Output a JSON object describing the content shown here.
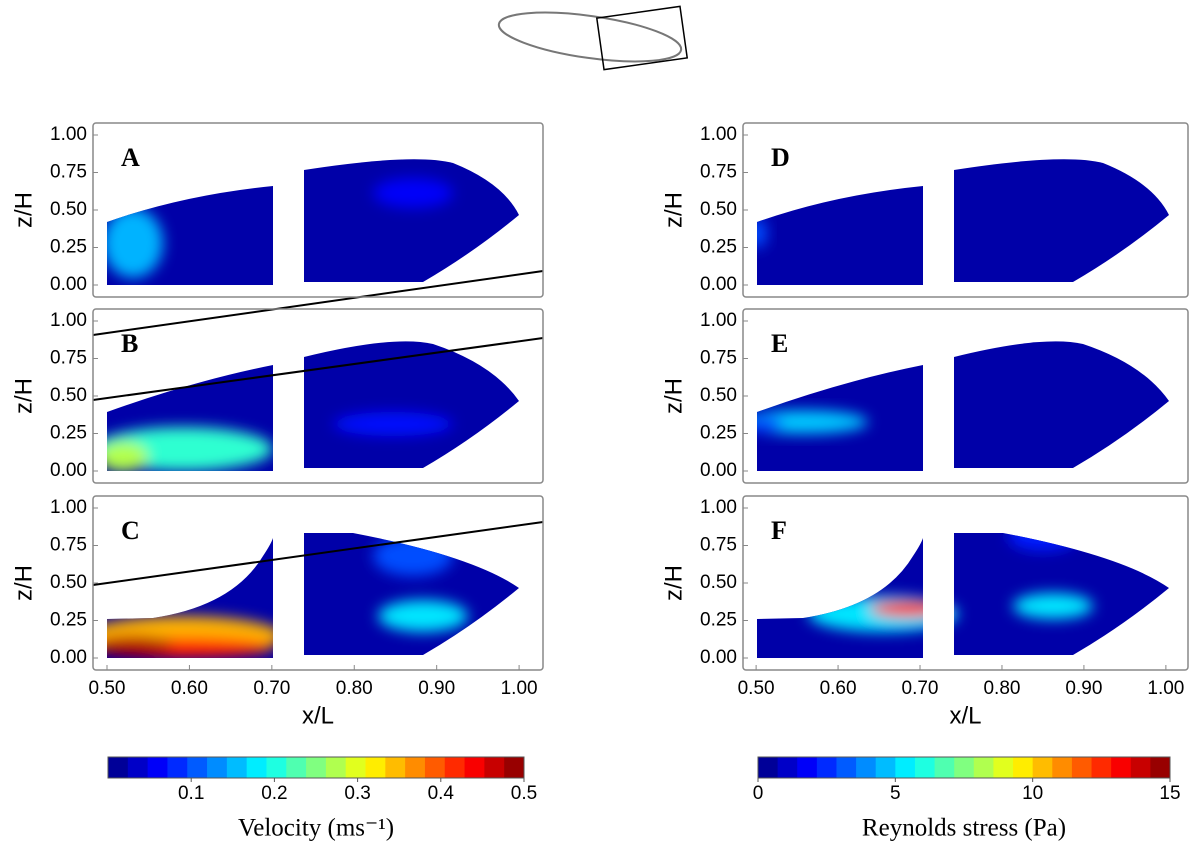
{
  "chart_data": [
    {
      "type": "contour",
      "label": "A",
      "ylabel": "z/H",
      "xlim": [
        0.483,
        1.029
      ],
      "ylim": [
        -0.08,
        1.08
      ],
      "yticks": [
        {
          "value": 0,
          "label": "0.00"
        },
        {
          "value": 0.25,
          "label": "0.25"
        },
        {
          "value": 0.5,
          "label": "0.50"
        },
        {
          "value": 0.75,
          "label": "0.75"
        },
        {
          "value": 1,
          "label": "1.00"
        }
      ]
    },
    {
      "type": "contour",
      "label": "B",
      "ylabel": "z/H",
      "xlim": [
        0.483,
        1.029
      ],
      "ylim": [
        -0.08,
        1.08
      ],
      "yticks": [
        {
          "value": 0,
          "label": "0.00"
        },
        {
          "value": 0.25,
          "label": "0.25"
        },
        {
          "value": 0.5,
          "label": "0.50"
        },
        {
          "value": 0.75,
          "label": "0.75"
        },
        {
          "value": 1,
          "label": "1.00"
        }
      ]
    },
    {
      "type": "contour",
      "label": "C",
      "ylabel": "z/H",
      "xlabel": "x/L",
      "xlim": [
        0.483,
        1.029
      ],
      "ylim": [
        -0.08,
        1.08
      ],
      "xticks": [
        {
          "value": 0.5,
          "label": "0.50"
        },
        {
          "value": 0.6,
          "label": "0.60"
        },
        {
          "value": 0.7,
          "label": "0.70"
        },
        {
          "value": 0.8,
          "label": "0.80"
        },
        {
          "value": 0.9,
          "label": "0.90"
        },
        {
          "value": 1,
          "label": "1.00"
        }
      ],
      "yticks": [
        {
          "value": 0,
          "label": "0.00"
        },
        {
          "value": 0.25,
          "label": "0.25"
        },
        {
          "value": 0.5,
          "label": "0.50"
        },
        {
          "value": 0.75,
          "label": "0.75"
        },
        {
          "value": 1,
          "label": "1.00"
        }
      ]
    },
    {
      "type": "contour",
      "label": "D",
      "ylabel": "z/H",
      "xlim": [
        0.484,
        1.027
      ],
      "ylim": [
        -0.08,
        1.08
      ],
      "yticks": [
        {
          "value": 0,
          "label": "0.00"
        },
        {
          "value": 0.25,
          "label": "0.25"
        },
        {
          "value": 0.5,
          "label": "0.50"
        },
        {
          "value": 0.75,
          "label": "0.75"
        },
        {
          "value": 1,
          "label": "1.00"
        }
      ]
    },
    {
      "type": "contour",
      "label": "E",
      "ylabel": "z/H",
      "xlim": [
        0.484,
        1.027
      ],
      "ylim": [
        -0.08,
        1.08
      ],
      "yticks": [
        {
          "value": 0,
          "label": "0.00"
        },
        {
          "value": 0.25,
          "label": "0.25"
        },
        {
          "value": 0.5,
          "label": "0.50"
        },
        {
          "value": 0.75,
          "label": "0.75"
        },
        {
          "value": 1,
          "label": "1.00"
        }
      ]
    },
    {
      "type": "contour",
      "label": "F",
      "ylabel": "z/H",
      "xlabel": "x/L",
      "xlim": [
        0.484,
        1.027
      ],
      "ylim": [
        -0.08,
        1.08
      ],
      "xticks": [
        {
          "value": 0.5,
          "label": "0.50"
        },
        {
          "value": 0.6,
          "label": "0.60"
        },
        {
          "value": 0.7,
          "label": "0.70"
        },
        {
          "value": 0.8,
          "label": "0.80"
        },
        {
          "value": 0.9,
          "label": "0.90"
        },
        {
          "value": 1,
          "label": "1.00"
        }
      ],
      "yticks": [
        {
          "value": 0,
          "label": "0.00"
        },
        {
          "value": 0.25,
          "label": "0.25"
        },
        {
          "value": 0.5,
          "label": "0.50"
        },
        {
          "value": 0.75,
          "label": "0.75"
        },
        {
          "value": 1,
          "label": "1.00"
        }
      ]
    },
    {
      "type": "colorbar",
      "label": "Velocity (ms⁻¹)",
      "colormap": "jet",
      "xlim": [
        0,
        0.5
      ],
      "xticks": [
        0.1,
        0.2,
        0.3,
        0.4,
        0.5
      ]
    },
    {
      "type": "colorbar",
      "label": "Reynolds stress (Pa)",
      "colormap": "jet",
      "xlim": [
        0,
        15
      ],
      "xticks": [
        0,
        5,
        10,
        15
      ]
    }
  ]
}
